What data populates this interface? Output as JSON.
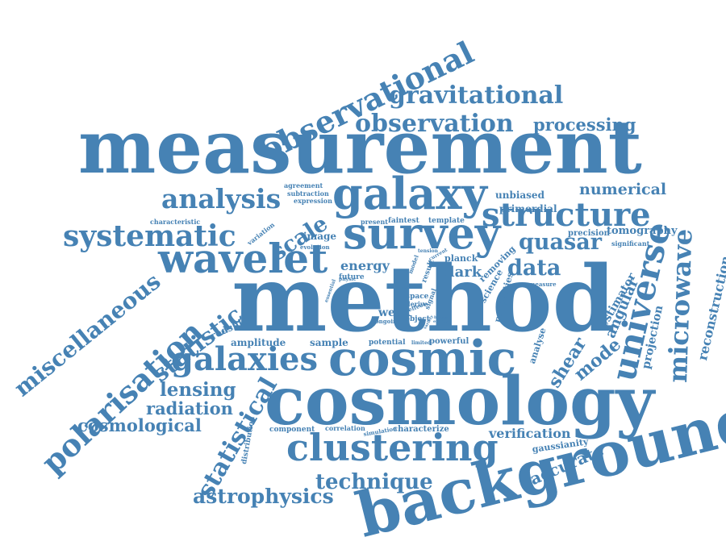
{
  "color": "#4682b4",
  "words": {
    "measurement": "measurement",
    "method": "method",
    "cosmology": "cosmology",
    "background": "background",
    "cosmic": "cosmic",
    "survey": "survey",
    "galaxy": "galaxy",
    "wavelet": "wavelet",
    "structure": "structure",
    "universe": "universe",
    "microwave": "microwave",
    "observational": "observational",
    "observation": "observation",
    "gravitational": "gravitational",
    "processing": "processing",
    "analysis": "analysis",
    "systematic": "systematic",
    "scale": "scale",
    "numerical": "numerical",
    "quasar": "quasar",
    "data": "data",
    "miscellaneous": "miscellaneous",
    "polarisation": "polarisation",
    "statistic": "statistic",
    "galaxies": "galaxies",
    "lensing": "lensing",
    "radiation": "radiation",
    "cosmological": "cosmological",
    "statistical": "statistical",
    "clustering": "clustering",
    "technique": "technique",
    "astrophysics": "astrophysics",
    "accurate": "accurate",
    "verification": "verification",
    "gaussianity": "gaussianity",
    "shear": "shear",
    "mode": "mode",
    "angular": "angular",
    "estimator": "estimator",
    "projection": "projection",
    "reconstruction": "reconstruction",
    "tomography": "tomography",
    "precision": "precision",
    "significant": "significant",
    "unbiased": "unbiased",
    "primordial": "primordial",
    "energy": "energy",
    "dark": "dark",
    "weak": "weak",
    "planck": "planck",
    "removing": "removing",
    "science": "science",
    "properties": "properties",
    "analyse": "analyse",
    "redshift": "redshift",
    "amplitude": "amplitude",
    "sample": "sample",
    "potential": "potential",
    "powerful": "powerful",
    "limited": "limited",
    "component": "component",
    "correlation": "correlation",
    "simulation": "simulation",
    "characterize": "characterize",
    "distribution": "distribution",
    "agreement": "agreement",
    "subtraction": "subtraction",
    "expression": "expression",
    "characteristic": "characteristic",
    "variation": "variation",
    "image": "image",
    "evolution": "evolution",
    "present": "present",
    "faintest": "faintest",
    "template": "template",
    "future": "future",
    "essential": "essential",
    "physic": "physic",
    "space": "space",
    "object": "object",
    "ongoing": "ongoing",
    "effect": "effect",
    "signal": "signal",
    "enable": "enable",
    "result": "result",
    "model": "model",
    "current": "current",
    "tension": "tension",
    "measure": "measure",
    "derive": "derive",
    "biased": "biased",
    "matter": "matter",
    "variety": "variety"
  }
}
